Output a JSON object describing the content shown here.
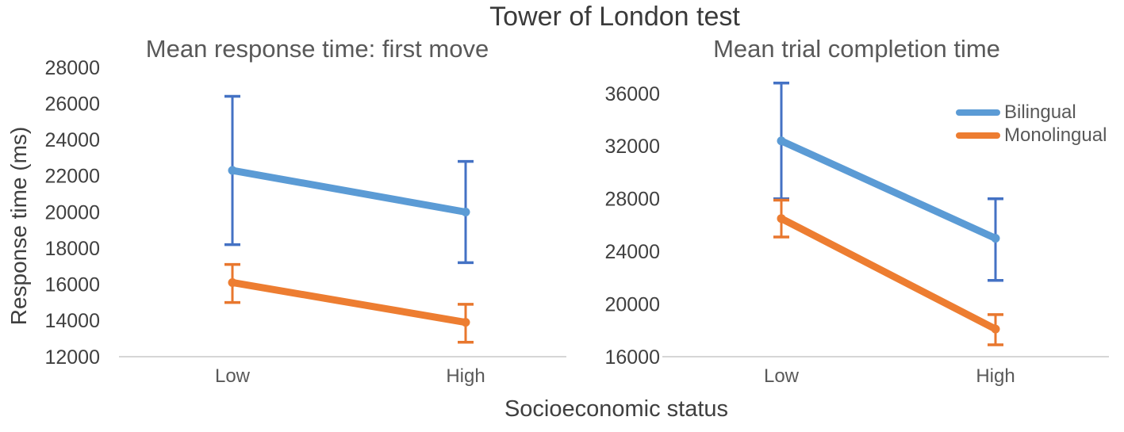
{
  "figure": {
    "main_title": "Tower of London test",
    "xlabel": "Socioeconomic status",
    "ylabel": "Response time (ms)"
  },
  "colors": {
    "bilingual_line": "#5B9BD5",
    "bilingual_error": "#4472C4",
    "monolingual_line": "#ED7D31",
    "monolingual_error": "#E8772E",
    "axis_line": "#D6D6D6",
    "tick_text": "#404040",
    "category_text": "#595959"
  },
  "chart_data": [
    {
      "type": "line",
      "title": "Mean response time: first move",
      "categories": [
        "Low",
        "High"
      ],
      "series": [
        {
          "name": "Bilingual",
          "color": "#5B9BD5",
          "error_color": "#4472C4",
          "values": [
            22300,
            20000
          ],
          "error_low": [
            18200,
            17200
          ],
          "error_high": [
            26400,
            22800
          ]
        },
        {
          "name": "Monolingual",
          "color": "#ED7D31",
          "error_color": "#E8772E",
          "values": [
            16100,
            13900
          ],
          "error_low": [
            15000,
            12800
          ],
          "error_high": [
            17100,
            14900
          ]
        }
      ],
      "ylim": [
        12000,
        28000
      ],
      "y_ticks": [
        12000,
        14000,
        16000,
        18000,
        20000,
        22000,
        24000,
        26000,
        28000
      ],
      "grid": false,
      "legend": false
    },
    {
      "type": "line",
      "title": "Mean trial completion time",
      "categories": [
        "Low",
        "High"
      ],
      "series": [
        {
          "name": "Bilingual",
          "color": "#5B9BD5",
          "error_color": "#4472C4",
          "values": [
            32400,
            25000
          ],
          "error_low": [
            28000,
            21800
          ],
          "error_high": [
            36800,
            28000
          ]
        },
        {
          "name": "Monolingual",
          "color": "#ED7D31",
          "error_color": "#E8772E",
          "values": [
            26500,
            18100
          ],
          "error_low": [
            25100,
            16900
          ],
          "error_high": [
            27900,
            19200
          ]
        }
      ],
      "ylim": [
        16000,
        36000
      ],
      "y_ticks": [
        16000,
        20000,
        24000,
        28000,
        32000,
        36000
      ],
      "grid": false,
      "legend": "top-right"
    }
  ]
}
